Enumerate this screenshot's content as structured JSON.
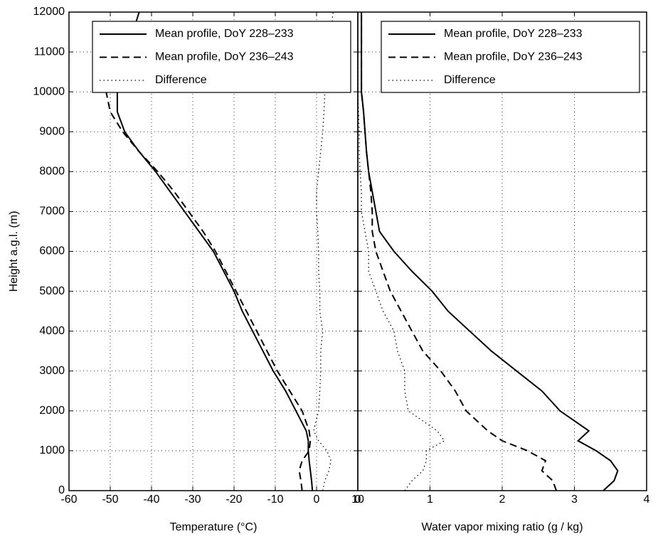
{
  "chart_data": [
    {
      "type": "line",
      "xlabel": "Temperature (°C)",
      "ylabel": "Height a.g.l. (m)",
      "xlim": [
        -60,
        10
      ],
      "xticks": [
        -60,
        -50,
        -40,
        -30,
        -20,
        -10,
        0,
        10
      ],
      "ylim": [
        0,
        12000
      ],
      "yticks": [
        0,
        1000,
        2000,
        3000,
        4000,
        5000,
        6000,
        7000,
        8000,
        9000,
        10000,
        11000,
        12000
      ],
      "grid": true,
      "legend": "upper right",
      "y": [
        0,
        250,
        500,
        750,
        1000,
        1250,
        1500,
        2000,
        2500,
        3000,
        3500,
        4000,
        4500,
        5000,
        5500,
        6000,
        6500,
        7000,
        7500,
        8000,
        8500,
        9000,
        9500,
        10000,
        10500,
        11000,
        11500,
        12000
      ],
      "series": [
        {
          "name": "Mean profile, DoY 228–233",
          "color": "#000000",
          "style": "solid",
          "values": [
            -1.0,
            -1.2,
            -1.5,
            -1.8,
            -2.0,
            -2.0,
            -2.5,
            -5.0,
            -7.5,
            -10.5,
            -13,
            -15.5,
            -18,
            -20,
            -22.5,
            -25,
            -28.5,
            -32,
            -35.5,
            -39,
            -43,
            -46.5,
            -48.3,
            -48.3,
            -47,
            -46,
            -44.5,
            -43
          ]
        },
        {
          "name": "Mean profile, DoY 236–243",
          "color": "#000000",
          "style": "dashed",
          "values": [
            -3.5,
            -3.8,
            -4.2,
            -3.5,
            -1.8,
            -1.5,
            -1.8,
            -3.5,
            -6.5,
            -9.5,
            -12,
            -14.5,
            -17,
            -19.5,
            -22,
            -24.5,
            -27.5,
            -31,
            -34.5,
            -38.5,
            -43,
            -47,
            -50,
            -51,
            null,
            null,
            null,
            null
          ]
        },
        {
          "name": "Difference",
          "color": "#000000",
          "style": "dotted",
          "values": [
            1.5,
            2.0,
            3.0,
            3.5,
            2.5,
            0.5,
            -0.7,
            0.5,
            0.8,
            1.0,
            1.0,
            1.5,
            0.8,
            0.8,
            0.5,
            0.5,
            0.3,
            0.0,
            0.0,
            0.5,
            1.0,
            1.5,
            1.8,
            2.0,
            2.5,
            3.0,
            3.5,
            4.0
          ]
        }
      ]
    },
    {
      "type": "line",
      "xlabel": "Water vapor mixing ratio (g / kg)",
      "xlim": [
        0,
        4
      ],
      "xticks": [
        0,
        1,
        2,
        3,
        4
      ],
      "ylim": [
        0,
        12000
      ],
      "yticks": [
        0,
        1000,
        2000,
        3000,
        4000,
        5000,
        6000,
        7000,
        8000,
        9000,
        10000,
        11000,
        12000
      ],
      "grid": true,
      "legend": "upper right",
      "y": [
        0,
        250,
        500,
        750,
        1000,
        1250,
        1500,
        2000,
        2500,
        3000,
        3500,
        4000,
        4500,
        5000,
        5500,
        6000,
        6500,
        7000,
        7500,
        8000,
        8500,
        9000,
        9500,
        10000,
        10500,
        11000,
        11500,
        12000
      ],
      "series": [
        {
          "name": "Mean profile, DoY 228–233",
          "color": "#000000",
          "style": "solid",
          "values": [
            3.4,
            3.55,
            3.6,
            3.5,
            3.3,
            3.05,
            3.2,
            2.8,
            2.55,
            2.2,
            1.85,
            1.55,
            1.25,
            1.03,
            0.75,
            0.5,
            0.3,
            0.25,
            0.2,
            0.15,
            0.12,
            0.1,
            0.08,
            0.05,
            0.05,
            0.05,
            0.05,
            0.05
          ]
        },
        {
          "name": "Mean profile, DoY 236–243",
          "color": "#000000",
          "style": "dashed",
          "values": [
            2.75,
            2.7,
            2.55,
            2.6,
            2.35,
            2.0,
            1.8,
            1.5,
            1.35,
            1.15,
            0.9,
            0.75,
            0.6,
            0.45,
            0.35,
            0.25,
            0.2,
            0.2,
            0.18,
            0.15,
            0.12,
            0.1,
            0.08,
            0.05,
            0.05,
            0.05,
            0.05,
            0.05
          ]
        },
        {
          "name": "Difference",
          "color": "#000000",
          "style": "dotted",
          "values": [
            0.65,
            0.75,
            0.9,
            0.95,
            0.95,
            1.2,
            1.1,
            0.7,
            0.65,
            0.65,
            0.55,
            0.5,
            0.35,
            0.25,
            0.15,
            0.15,
            0.1,
            0.05,
            0.05,
            0.03,
            0.02,
            0.02,
            0.01,
            0.0,
            0.0,
            0.0,
            0.0,
            0.0
          ]
        }
      ]
    }
  ]
}
